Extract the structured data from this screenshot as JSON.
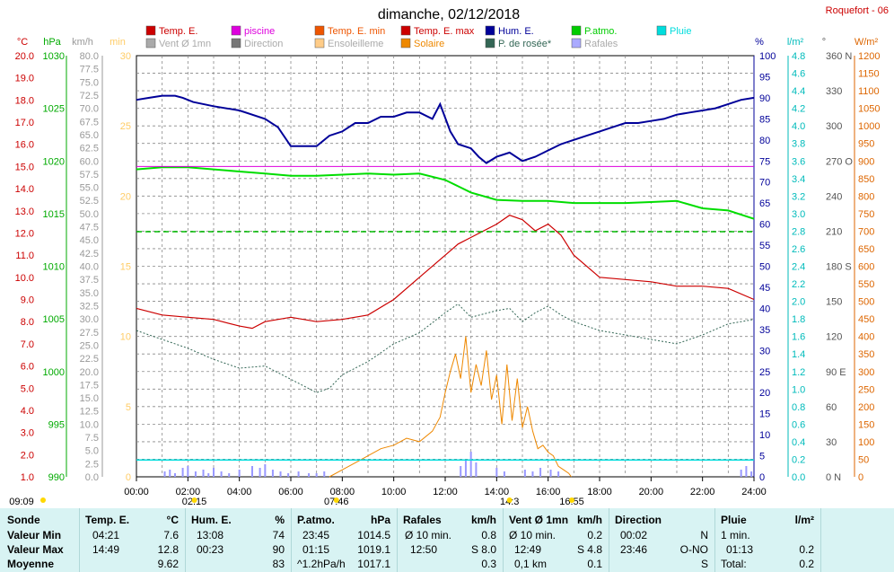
{
  "header": {
    "title": "dimanche, 02/12/2018",
    "station": "Roquefort - 06"
  },
  "legend": [
    {
      "label": "Temp. E.",
      "color": "#cc0000",
      "active": true
    },
    {
      "label": "piscine",
      "color": "#dd00dd",
      "active": true
    },
    {
      "label": "Temp. E. min",
      "color": "#ee5500",
      "active": true
    },
    {
      "label": "Temp. E. max",
      "color": "#cc0000",
      "active": true
    },
    {
      "label": "Hum. E.",
      "color": "#000099",
      "active": true
    },
    {
      "label": "P.atmo.",
      "color": "#00cc00",
      "active": true
    },
    {
      "label": "Pluie",
      "color": "#00dddd",
      "active": true
    },
    {
      "label": "Vent Ø 1mn",
      "color": "#aaaaaa",
      "active": false
    },
    {
      "label": "Direction",
      "color": "#777777",
      "active": false
    },
    {
      "label": "Ensoleilleme",
      "color": "#ffcc88",
      "active": false
    },
    {
      "label": "Solaire",
      "color": "#ee8800",
      "active": true
    },
    {
      "label": "P. de rosée*",
      "color": "#336655",
      "active": true
    },
    {
      "label": "Rafales",
      "color": "#aaaaff",
      "active": false
    }
  ],
  "axes": {
    "temp": {
      "unit": "°C",
      "color": "#cc0000",
      "ticks": [
        "20.0",
        "19.0",
        "18.0",
        "17.0",
        "16.0",
        "15.0",
        "14.0",
        "13.0",
        "12.0",
        "11.0",
        "10.0",
        "9.0",
        "8.0",
        "7.0",
        "6.0",
        "5.0",
        "4.0",
        "3.0",
        "2.0",
        "1.0"
      ]
    },
    "press": {
      "unit": "hPa",
      "color": "#00aa00",
      "ticks": [
        "1030",
        "1025",
        "1020",
        "1015",
        "1010",
        "1005",
        "1000",
        "995",
        "990"
      ]
    },
    "wind": {
      "unit": "km/h",
      "color": "#999999",
      "ticks": [
        "80.0",
        "77.5",
        "75.0",
        "72.5",
        "70.0",
        "67.5",
        "65.0",
        "62.5",
        "60.0",
        "57.5",
        "55.0",
        "52.5",
        "50.0",
        "47.5",
        "45.0",
        "42.5",
        "40.0",
        "37.5",
        "35.0",
        "32.5",
        "30.0",
        "27.5",
        "25.0",
        "22.5",
        "20.0",
        "17.5",
        "15.0",
        "12.5",
        "10.0",
        "7.5",
        "5.0",
        "2.5",
        "0.0"
      ]
    },
    "sunmin": {
      "unit": "min",
      "color": "#ffcc66",
      "ticks": [
        "30",
        "25",
        "20",
        "15",
        "10",
        "5",
        "0"
      ]
    },
    "hum": {
      "unit": "%",
      "color": "#000099",
      "ticks": [
        "100",
        "95",
        "90",
        "85",
        "80",
        "75",
        "70",
        "65",
        "60",
        "55",
        "50",
        "45",
        "40",
        "35",
        "30",
        "25",
        "20",
        "15",
        "10",
        "5",
        "0"
      ]
    },
    "rain": {
      "unit": "l/m²",
      "color": "#00bbbb",
      "ticks": [
        "4.8",
        "4.6",
        "4.4",
        "4.2",
        "4.0",
        "3.8",
        "3.6",
        "3.4",
        "3.2",
        "3.0",
        "2.8",
        "2.6",
        "2.4",
        "2.2",
        "2.0",
        "1.8",
        "1.6",
        "1.4",
        "1.2",
        "1.0",
        "0.8",
        "0.6",
        "0.4",
        "0.2",
        "0.0"
      ]
    },
    "dir": {
      "unit": "°",
      "color": "#555555",
      "ticks": [
        "360 N",
        "330",
        "300",
        "270 O",
        "240",
        "210",
        "180 S",
        "150",
        "120",
        "90 E",
        "60",
        "30",
        "0 N"
      ]
    },
    "solar": {
      "unit": "W/m²",
      "color": "#dd6600",
      "ticks": [
        "1200",
        "1150",
        "1100",
        "1050",
        "1000",
        "950",
        "900",
        "850",
        "800",
        "750",
        "700",
        "650",
        "600",
        "550",
        "500",
        "450",
        "400",
        "350",
        "300",
        "250",
        "200",
        "150",
        "100",
        "50",
        "0"
      ]
    },
    "time": {
      "ticks": [
        "00:00",
        "02:00",
        "04:00",
        "06:00",
        "08:00",
        "10:00",
        "12:00",
        "14:00",
        "16:00",
        "18:00",
        "20:00",
        "22:00",
        "24:00"
      ]
    }
  },
  "events": {
    "sunrise_prev": "09:09",
    "t1": "02:15",
    "sunrise": "07:46",
    "t2": "14:3",
    "sunset": "16:55"
  },
  "chart_data": {
    "type": "line",
    "x_unit": "hours",
    "xlim": [
      0,
      24
    ],
    "series": [
      {
        "name": "Hum. E.",
        "axis": "hum",
        "x": [
          0,
          0.5,
          1,
          1.5,
          1.8,
          2.2,
          3,
          4,
          5,
          5.5,
          6,
          6.5,
          7,
          7.5,
          8,
          8.5,
          9,
          9.5,
          10,
          10.5,
          11,
          11.5,
          11.8,
          12.2,
          12.5,
          13,
          13.3,
          13.6,
          14,
          14.5,
          15,
          15.5,
          16,
          16.5,
          17,
          17.5,
          18,
          18.5,
          19,
          19.5,
          20,
          20.5,
          21,
          21.5,
          22,
          22.5,
          23,
          23.5,
          24
        ],
        "y": [
          89.5,
          90,
          90.5,
          90.5,
          90,
          89,
          88,
          87,
          85,
          83,
          78.5,
          78.5,
          78.5,
          81,
          82,
          84,
          84,
          85.5,
          85.5,
          86.5,
          86.5,
          85,
          88.5,
          82,
          79,
          78,
          76,
          74.5,
          76,
          77,
          75,
          76,
          77.5,
          79,
          80,
          81,
          82,
          83,
          84,
          84,
          84.5,
          85,
          86,
          86.5,
          87,
          87.5,
          88.5,
          89.5,
          90
        ]
      },
      {
        "name": "P.atmo.",
        "axis": "press",
        "x": [
          0,
          1,
          2,
          3,
          4,
          5,
          6,
          7,
          8,
          9,
          10,
          11,
          12,
          12.5,
          13,
          14,
          15,
          16,
          17,
          18,
          19,
          20,
          21,
          22,
          23,
          24
        ],
        "y": [
          1019.2,
          1019.4,
          1019.4,
          1019.2,
          1019.0,
          1018.8,
          1018.6,
          1018.6,
          1018.7,
          1018.8,
          1018.7,
          1018.8,
          1018.2,
          1017.6,
          1017.0,
          1016.3,
          1016.2,
          1016.2,
          1016.0,
          1016.0,
          1016.0,
          1016.1,
          1016.2,
          1015.5,
          1015.3,
          1014.5
        ]
      },
      {
        "name": "Temp. E.",
        "axis": "temp",
        "x": [
          0,
          1,
          2,
          3,
          4,
          4.5,
          5,
          6,
          7,
          8,
          9,
          10,
          11,
          12,
          12.5,
          13,
          14,
          14.5,
          15,
          15.5,
          16,
          16.5,
          17,
          18,
          19,
          20,
          21,
          22,
          23,
          24
        ],
        "y": [
          8.6,
          8.3,
          8.2,
          8.1,
          7.8,
          7.7,
          8.0,
          8.2,
          8.0,
          8.1,
          8.3,
          9.0,
          10.0,
          11.0,
          11.5,
          11.8,
          12.4,
          12.8,
          12.6,
          12.1,
          12.4,
          11.9,
          11.0,
          10.0,
          9.9,
          9.8,
          9.6,
          9.6,
          9.5,
          9.0
        ]
      },
      {
        "name": "P. de rosée*",
        "axis": "temp",
        "x": [
          0,
          1,
          2,
          3,
          4,
          5,
          6,
          7,
          7.5,
          8,
          9,
          10,
          11,
          12,
          12.5,
          13,
          14,
          14.5,
          15,
          15.5,
          16,
          16.5,
          17,
          18,
          19,
          20,
          21,
          22,
          23,
          24
        ],
        "y": [
          7.6,
          7.2,
          6.8,
          6.3,
          5.9,
          6.0,
          5.4,
          4.8,
          5.0,
          5.6,
          6.2,
          7.0,
          7.5,
          8.4,
          8.8,
          8.2,
          8.5,
          8.6,
          8.0,
          8.4,
          8.7,
          8.3,
          8.0,
          7.6,
          7.4,
          7.2,
          7.0,
          7.4,
          7.9,
          8.1
        ]
      },
      {
        "name": "piscine",
        "axis": "temp",
        "x": [
          0,
          24
        ],
        "y": [
          15.0,
          15.0
        ]
      },
      {
        "name": "Solaire",
        "axis": "solar",
        "x": [
          7.5,
          8,
          8.5,
          9,
          9.5,
          10,
          10.5,
          11,
          11.5,
          11.8,
          12,
          12.2,
          12.4,
          12.6,
          12.8,
          13,
          13.2,
          13.4,
          13.6,
          13.8,
          14,
          14.2,
          14.4,
          14.6,
          14.8,
          15,
          15.2,
          15.4,
          15.6,
          15.8,
          16,
          16.2,
          16.4,
          16.6,
          16.8,
          16.9
        ],
        "y": [
          0,
          20,
          40,
          60,
          80,
          90,
          110,
          100,
          130,
          170,
          240,
          300,
          350,
          280,
          400,
          240,
          320,
          260,
          360,
          220,
          290,
          150,
          320,
          160,
          280,
          140,
          200,
          130,
          80,
          90,
          70,
          60,
          30,
          20,
          10,
          0
        ]
      },
      {
        "name": "Pluie",
        "axis": "rain",
        "x": [
          0,
          24
        ],
        "y": [
          0.2,
          0.2
        ]
      }
    ]
  },
  "stats": {
    "headers": {
      "sonde": "Sonde",
      "temp": "Temp. E.",
      "temp_unit": "°C",
      "hum": "Hum. E.",
      "hum_unit": "%",
      "press": "P.atmo.",
      "press_unit": "hPa",
      "gust": "Rafales",
      "gust_unit": "km/h",
      "wind": "Vent Ø 1mn",
      "wind_unit": "km/h",
      "dir": "Direction",
      "rain": "Pluie",
      "rain_unit": "l/m²"
    },
    "rows": [
      {
        "label": "Valeur Min",
        "temp_t": "04:21",
        "temp_v": "7.6",
        "hum_t": "13:08",
        "hum_v": "74",
        "press_t": "23:45",
        "press_v": "1014.5",
        "gust_t": "Ø 10 min.",
        "gust_v": "0.8",
        "wind_t": "Ø 10 min.",
        "wind_v": "0.2",
        "dir_t": "00:02",
        "dir_v": "N",
        "rain_t": "1 min.",
        "rain_v": ""
      },
      {
        "label": "Valeur Max",
        "temp_t": "14:49",
        "temp_v": "12.8",
        "hum_t": "00:23",
        "hum_v": "90",
        "press_t": "01:15",
        "press_v": "1019.1",
        "gust_t": "12:50",
        "gust_v": "S 8.0",
        "wind_t": "12:49",
        "wind_v": "S 4.8",
        "dir_t": "23:46",
        "dir_v": "O-NO",
        "rain_t": "01:13",
        "rain_v": "0.2"
      },
      {
        "label": "Moyenne",
        "temp_t": "",
        "temp_v": "9.62",
        "hum_t": "",
        "hum_v": "83",
        "press_t": "^1.2hPa/h",
        "press_v": "1017.1",
        "gust_t": "",
        "gust_v": "0.3",
        "wind_t": "0,1 km",
        "wind_v": "0.1",
        "dir_t": "",
        "dir_v": "S",
        "rain_t": "Total:",
        "rain_v": "0.2"
      }
    ]
  }
}
